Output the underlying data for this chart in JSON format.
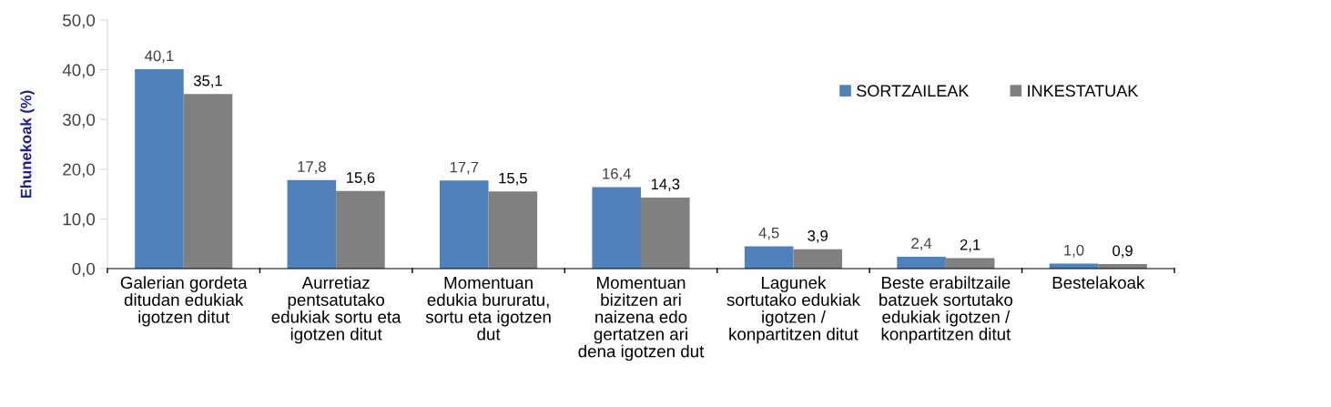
{
  "chart_data": {
    "type": "bar",
    "ylabel": "Ehunekoak (%)",
    "categories": [
      "Galerian gordeta\nditudan edukiak\nigotzen ditut",
      "Aurretiaz\npentsatutako\nedukiak sortu eta\nigotzen ditut",
      "Momentuan\nedukia bururatu,\nsortu eta igotzen\ndut",
      "Momentuan\nbizitzen ari\nnaizena edo\ngertatzen ari\ndena igotzen dut",
      "Lagunek\nsortutako edukiak\nigotzen /\nkonpartitzen ditut",
      "Beste erabiltzaile\nbatzuek sortutako\nedukiak igotzen /\nkonpartitzen ditut",
      "Bestelakoak"
    ],
    "series": [
      {
        "name": "SORTZAILEAK",
        "color": "#4f81bd",
        "values": [
          40.1,
          17.8,
          17.7,
          16.4,
          4.5,
          2.4,
          1.0
        ],
        "value_labels": [
          "40,1",
          "17,8",
          "17,7",
          "16,4",
          "4,5",
          "2,4",
          "1,0"
        ]
      },
      {
        "name": "INKESTATUAK",
        "color": "#808080",
        "values": [
          35.1,
          15.6,
          15.5,
          14.3,
          3.9,
          2.1,
          0.9
        ],
        "value_labels": [
          "35,1",
          "15,6",
          "15,5",
          "14,3",
          "3,9",
          "2,1",
          "0,9"
        ]
      }
    ],
    "ylim": [
      0,
      50
    ],
    "yticks": [
      {
        "value": 0,
        "label": "0,0"
      },
      {
        "value": 10,
        "label": "10,0"
      },
      {
        "value": 20,
        "label": "20,0"
      },
      {
        "value": 30,
        "label": "30,0"
      },
      {
        "value": 40,
        "label": "40,0"
      },
      {
        "value": 50,
        "label": "50,0"
      }
    ],
    "grid": false,
    "legend": "top right"
  }
}
